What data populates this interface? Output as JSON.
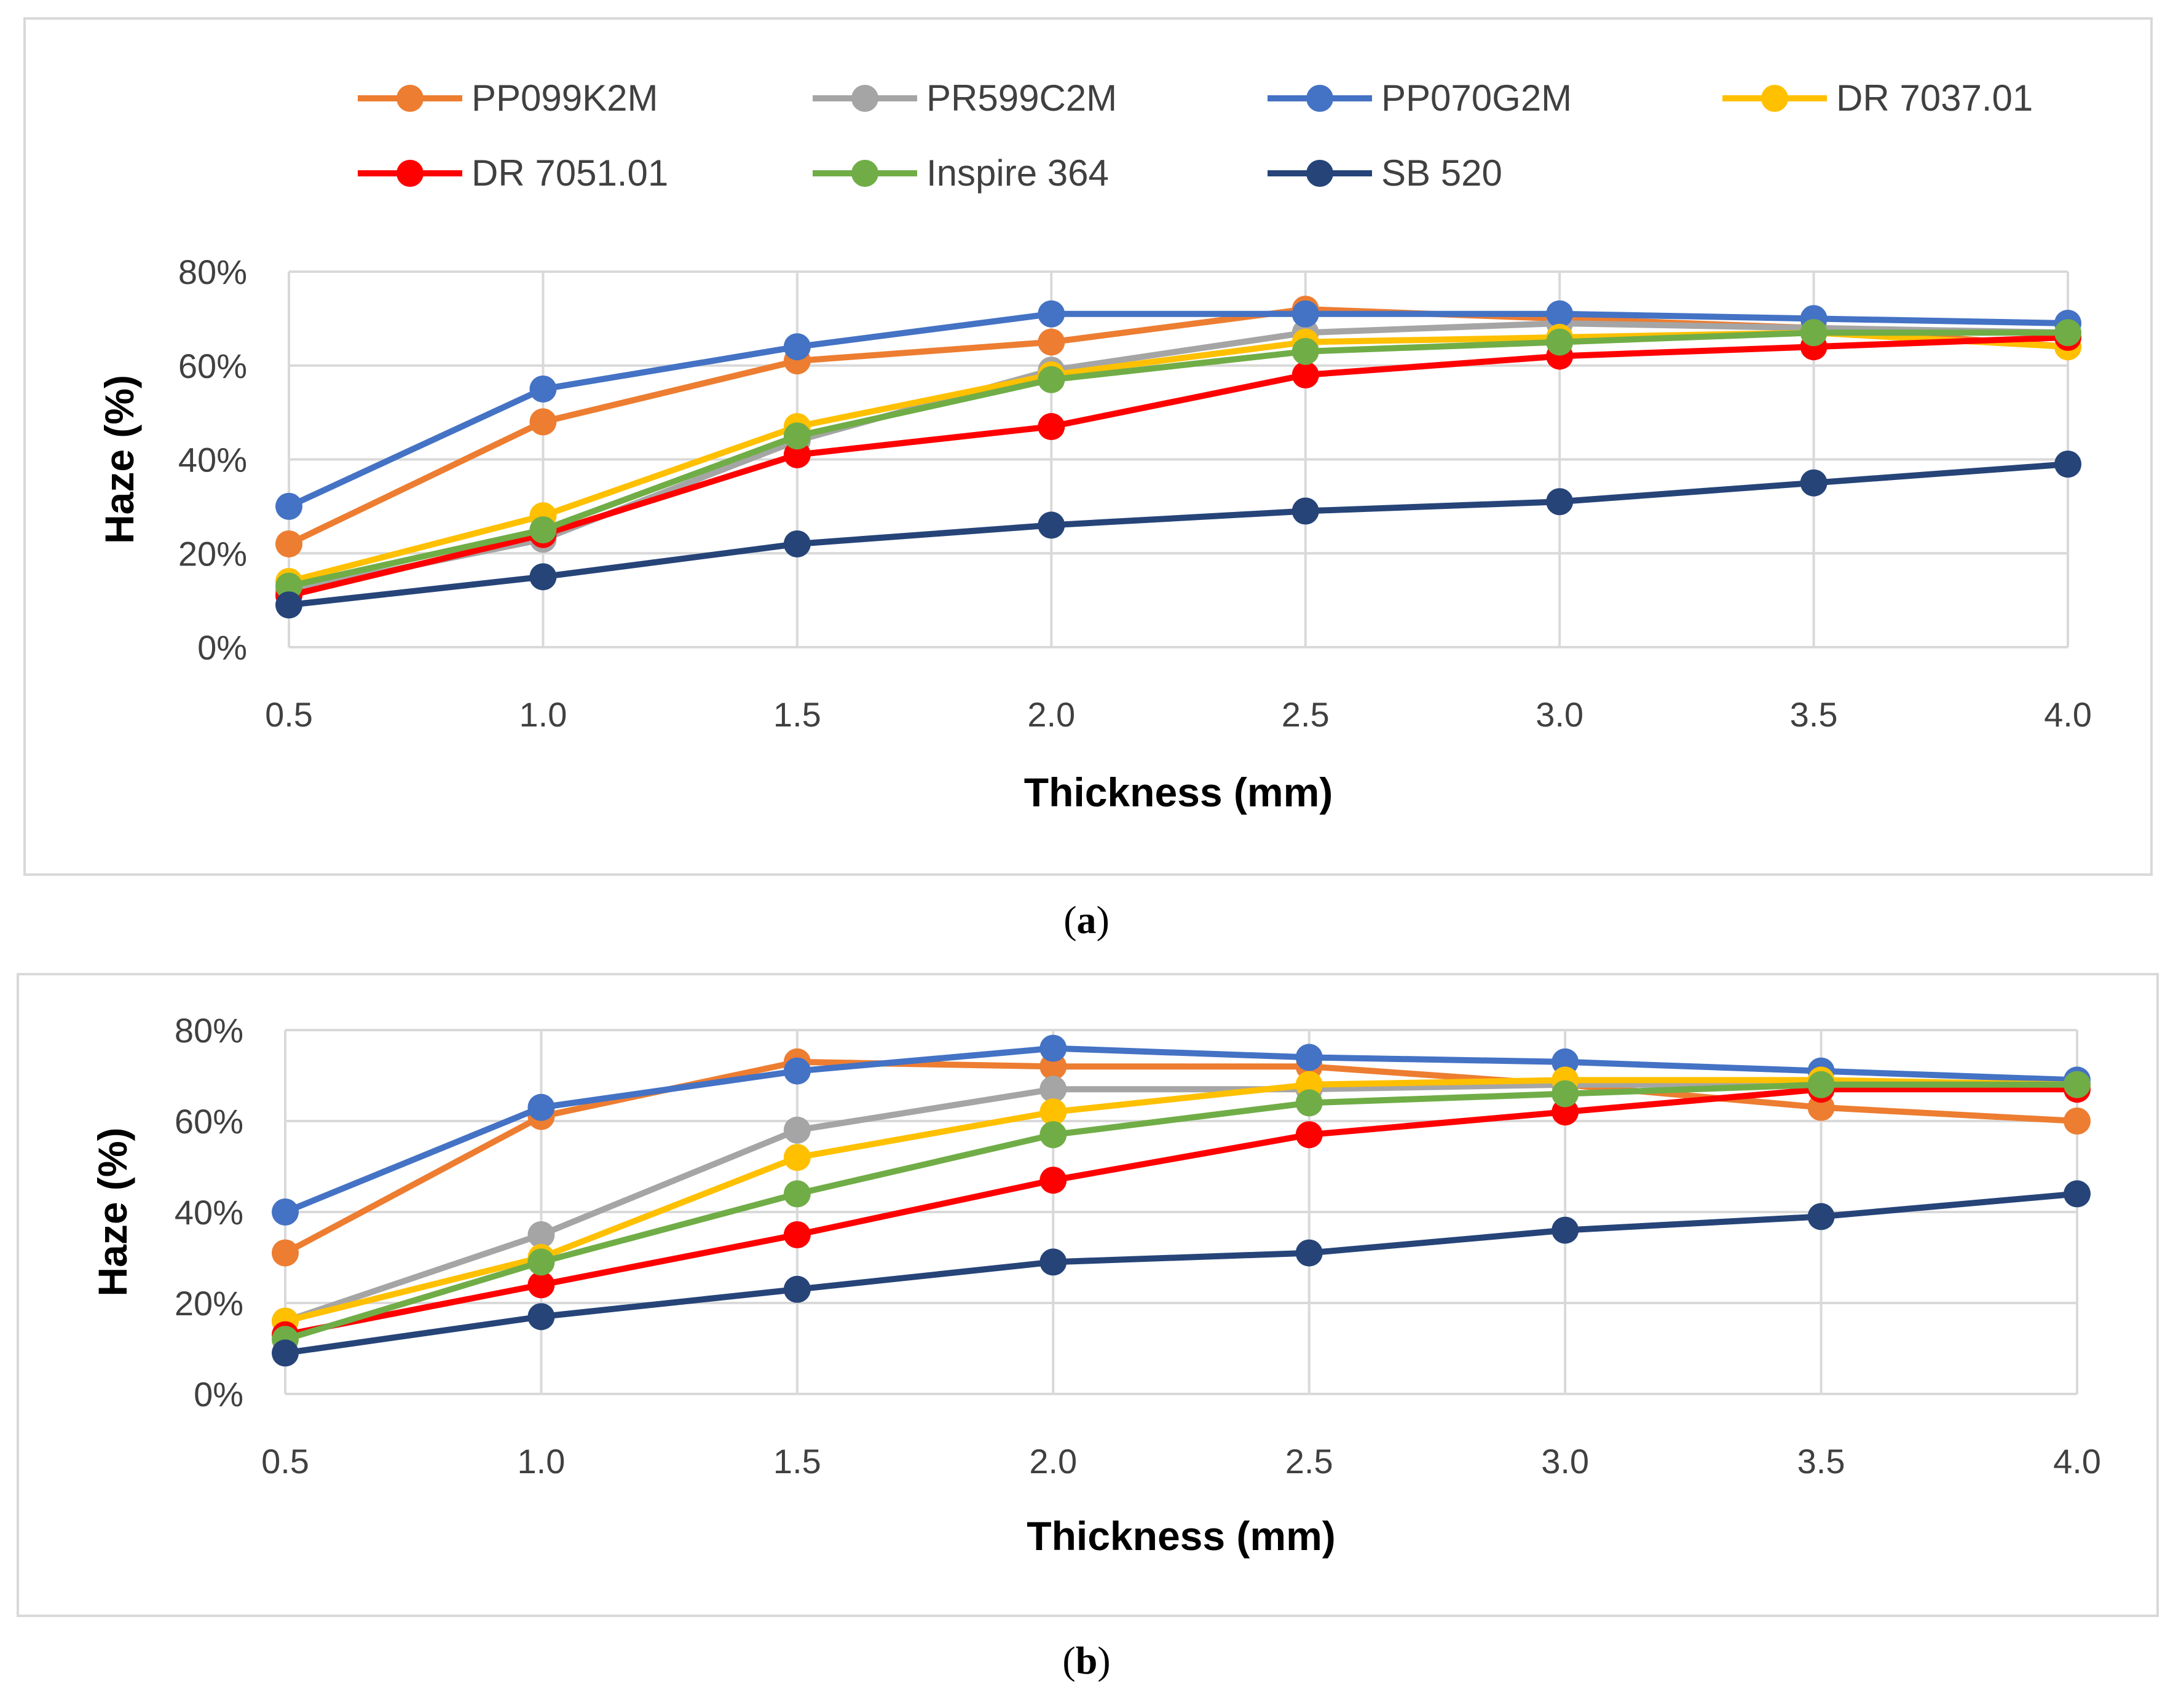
{
  "captions": {
    "a": {
      "open": "(",
      "letter": "a",
      "close": ")"
    },
    "b": {
      "open": "(",
      "letter": "b",
      "close": ")"
    }
  },
  "chart_data": [
    {
      "id": "a",
      "type": "line",
      "xlabel": "Thickness (mm)",
      "ylabel": "Haze (%)",
      "ylim": [
        0,
        80
      ],
      "yticks": [
        0,
        20,
        40,
        60,
        80
      ],
      "ytick_labels": [
        "0%",
        "20%",
        "40%",
        "60%",
        "80%"
      ],
      "grid": true,
      "legend": "top",
      "x": [
        "0.5",
        "1.0",
        "1.5",
        "2.0",
        "2.5",
        "3.0",
        "3.5",
        "4.0"
      ],
      "series": [
        {
          "name": "PP099K2M",
          "color": "#ED7D31",
          "values": [
            22,
            48,
            61,
            65,
            72,
            70,
            68,
            64
          ]
        },
        {
          "name": "PR599C2M",
          "color": "#A5A5A5",
          "values": [
            12,
            23,
            44,
            59,
            67,
            69,
            68,
            67
          ]
        },
        {
          "name": "PP070G2M",
          "color": "#4472C4",
          "values": [
            30,
            55,
            64,
            71,
            71,
            71,
            70,
            69
          ]
        },
        {
          "name": "DR 7037.01",
          "color": "#FFC000",
          "values": [
            14,
            28,
            47,
            58,
            65,
            66,
            67,
            64
          ]
        },
        {
          "name": "DR 7051.01",
          "color": "#FF0000",
          "values": [
            11,
            24,
            41,
            47,
            58,
            62,
            64,
            66
          ]
        },
        {
          "name": "Inspire 364",
          "color": "#70AD47",
          "values": [
            13,
            25,
            45,
            57,
            63,
            65,
            67,
            67
          ]
        },
        {
          "name": "SB 520",
          "color": "#264478",
          "values": [
            9,
            15,
            22,
            26,
            29,
            31,
            35,
            39
          ]
        }
      ]
    },
    {
      "id": "b",
      "type": "line",
      "xlabel": "Thickness (mm)",
      "ylabel": "Haze (%)",
      "ylim": [
        0,
        80
      ],
      "yticks": [
        0,
        20,
        40,
        60,
        80
      ],
      "ytick_labels": [
        "0%",
        "20%",
        "40%",
        "60%",
        "80%"
      ],
      "grid": true,
      "legend": "none",
      "x": [
        "0.5",
        "1.0",
        "1.5",
        "2.0",
        "2.5",
        "3.0",
        "3.5",
        "4.0"
      ],
      "series": [
        {
          "name": "PP099K2M",
          "color": "#ED7D31",
          "values": [
            31,
            61,
            73,
            72,
            72,
            68,
            63,
            60
          ]
        },
        {
          "name": "PR599C2M",
          "color": "#A5A5A5",
          "values": [
            16,
            35,
            58,
            67,
            67,
            68,
            68,
            68
          ]
        },
        {
          "name": "PP070G2M",
          "color": "#4472C4",
          "values": [
            40,
            63,
            71,
            76,
            74,
            73,
            71,
            69
          ]
        },
        {
          "name": "DR 7037.01",
          "color": "#FFC000",
          "values": [
            16,
            30,
            52,
            62,
            68,
            69,
            69,
            68
          ]
        },
        {
          "name": "DR 7051.01",
          "color": "#FF0000",
          "values": [
            13,
            24,
            35,
            47,
            57,
            62,
            67,
            67
          ]
        },
        {
          "name": "Inspire 364",
          "color": "#70AD47",
          "values": [
            12,
            29,
            44,
            57,
            64,
            66,
            68,
            68
          ]
        },
        {
          "name": "SB 520",
          "color": "#264478",
          "values": [
            9,
            17,
            23,
            29,
            31,
            36,
            39,
            44
          ]
        }
      ]
    }
  ]
}
